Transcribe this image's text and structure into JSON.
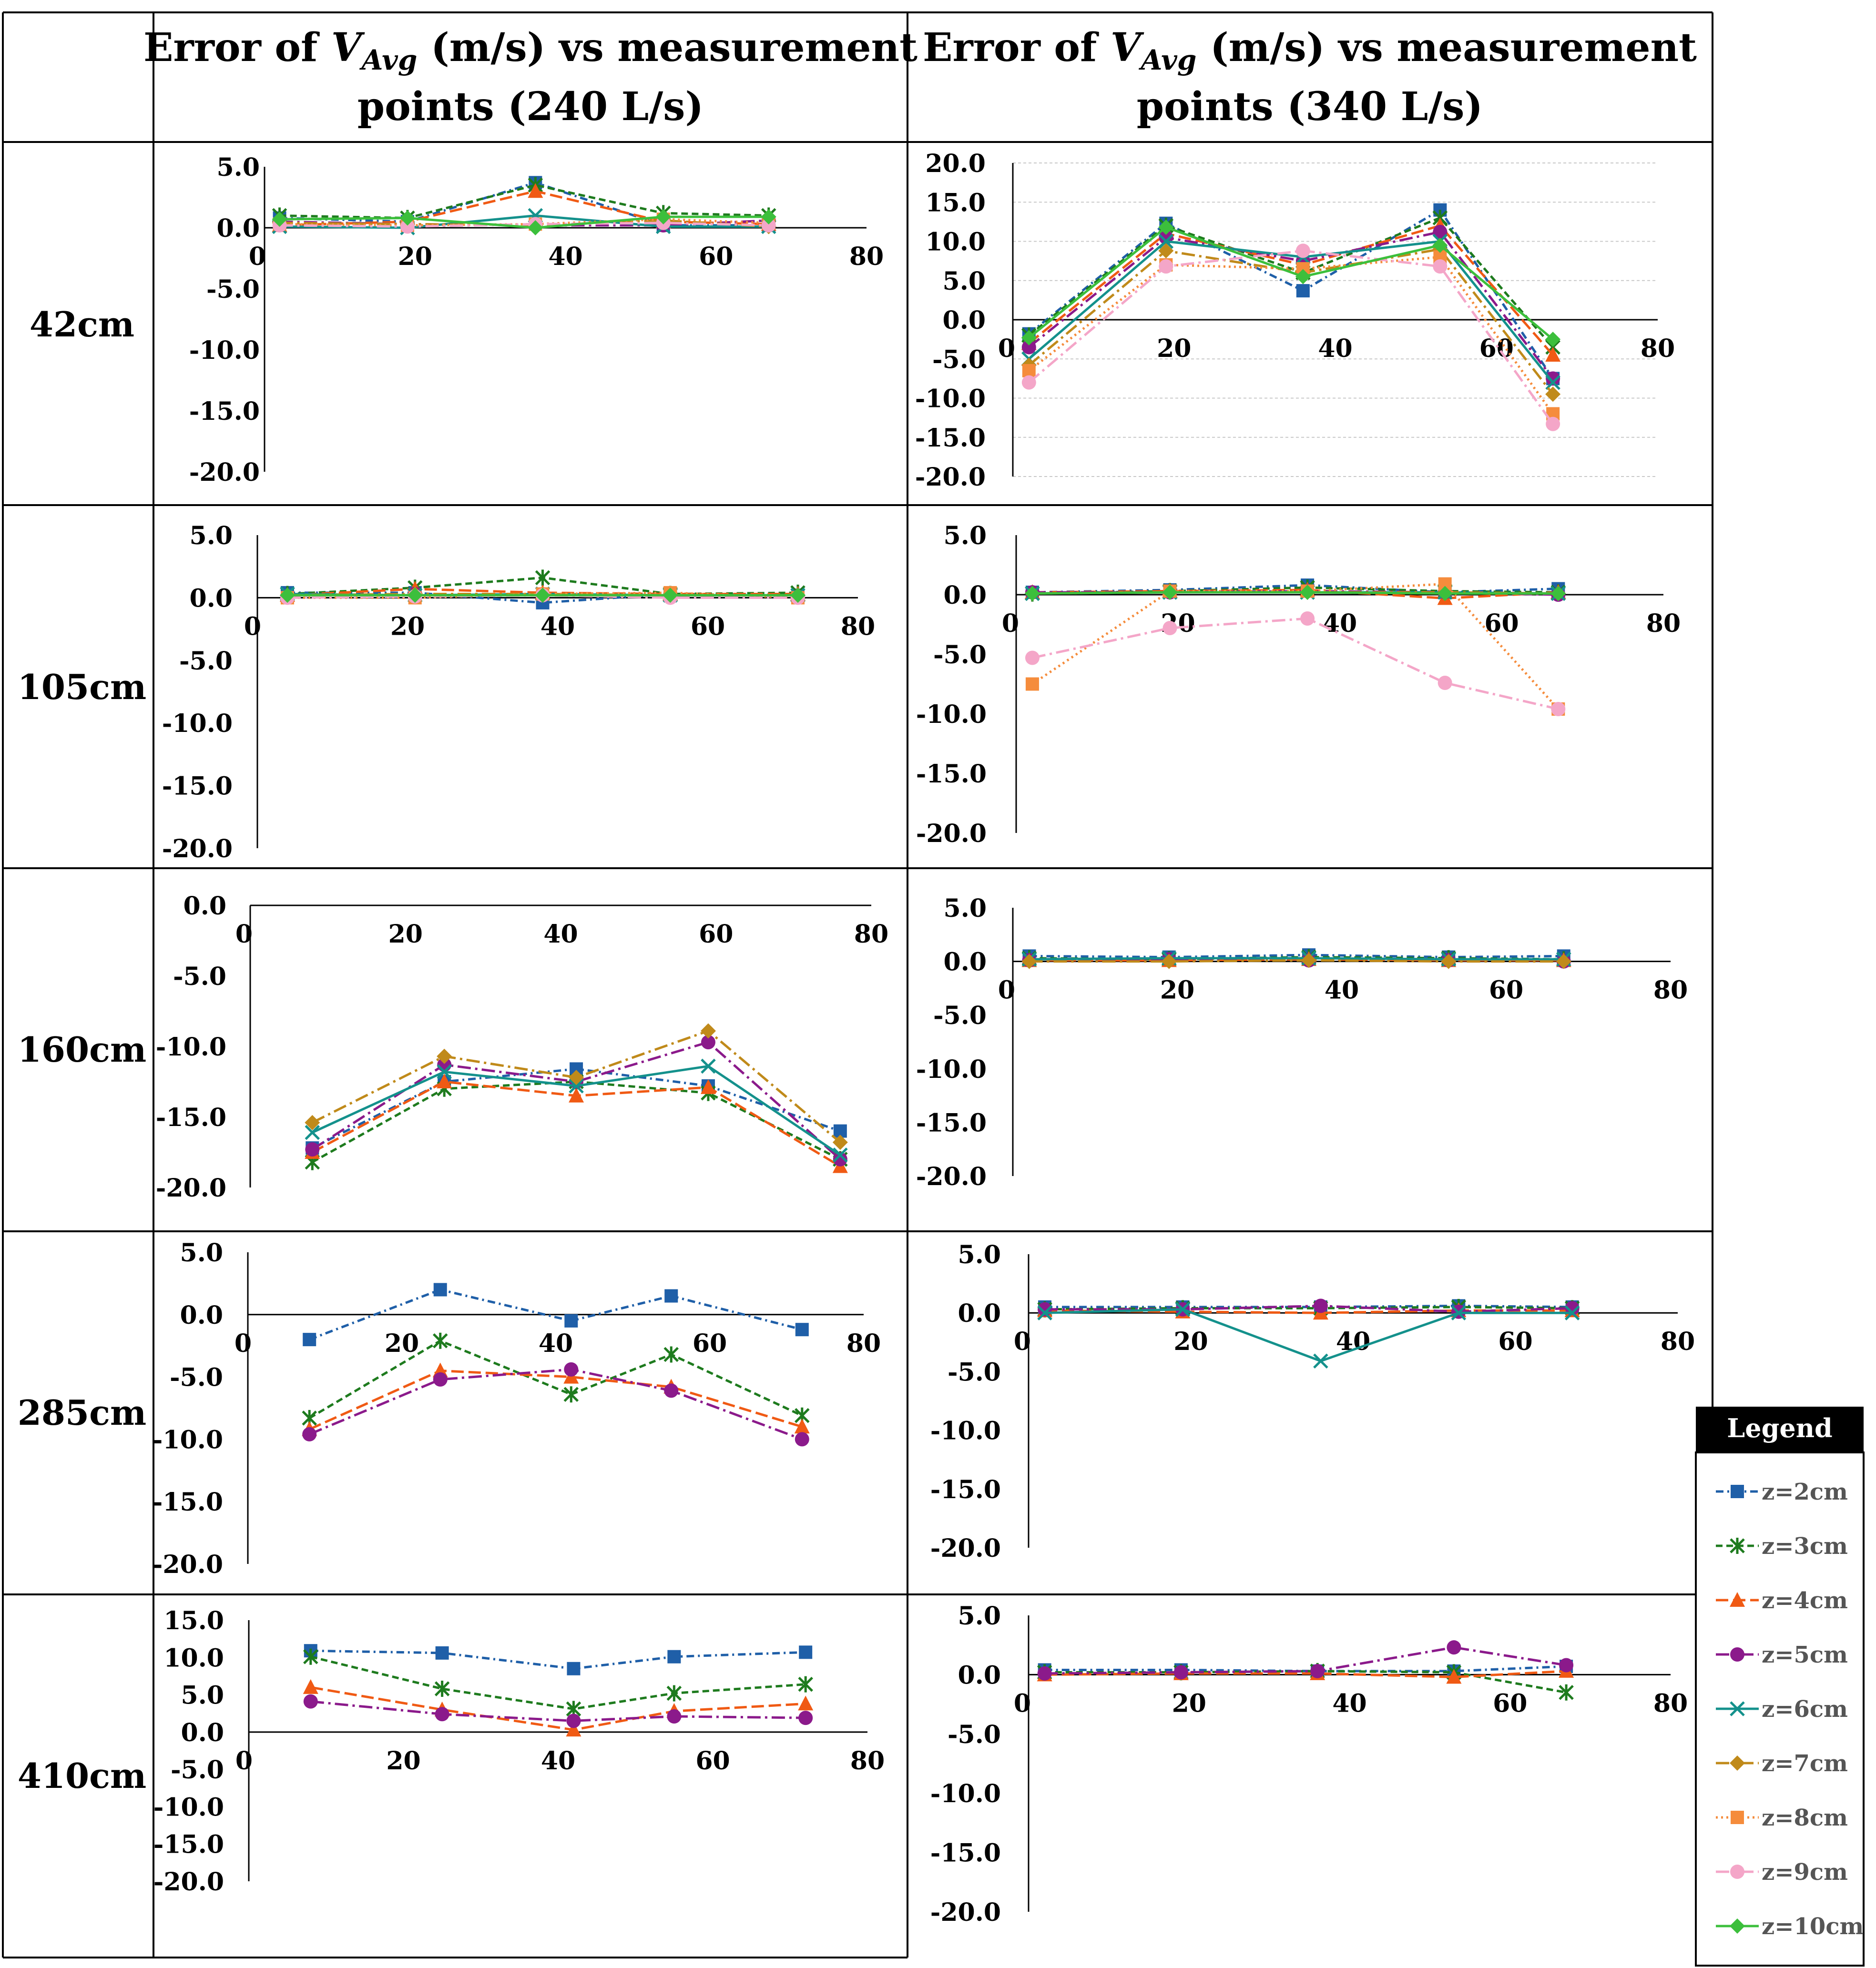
{
  "header": {
    "col1_title_line1_prefix": "Error of ",
    "col1_title_var": "V",
    "col1_title_sub": "Avg",
    "col1_title_line1_suffix": " (m/s) vs measurement",
    "col1_title_line2": "points (240 L/s)",
    "col2_title_line1_prefix": "Error of ",
    "col2_title_var": "V",
    "col2_title_sub": "Avg",
    "col2_title_line1_suffix": " (m/s) vs measurement",
    "col2_title_line2": "points (340 L/s)"
  },
  "rows": [
    "42cm",
    "105cm",
    "160cm",
    "285cm",
    "410cm"
  ],
  "legend": {
    "title": "Legend",
    "items": [
      {
        "label": "z=2cm",
        "color": "#1f5fa8",
        "marker": "square",
        "dash": "dashdot"
      },
      {
        "label": "z=3cm",
        "color": "#1e7b1e",
        "marker": "star",
        "dash": "dash"
      },
      {
        "label": "z=4cm",
        "color": "#f05a14",
        "marker": "triangle",
        "dash": "longdash"
      },
      {
        "label": "z=5cm",
        "color": "#8b1a8b",
        "marker": "circle",
        "dash": "longdashdot"
      },
      {
        "label": "z=6cm",
        "color": "#14918c",
        "marker": "x",
        "dash": "solid"
      },
      {
        "label": "z=7cm",
        "color": "#c08a1a",
        "marker": "diamond",
        "dash": "longdashdot"
      },
      {
        "label": "z=8cm",
        "color": "#f58c3c",
        "marker": "square",
        "dash": "dot"
      },
      {
        "label": "z=9cm",
        "color": "#f4a6c8",
        "marker": "circle",
        "dash": "longdashdot"
      },
      {
        "label": "z=10cm",
        "color": "#3cbf3c",
        "marker": "diamond",
        "dash": "solid"
      }
    ]
  },
  "chart_data": [
    {
      "id": "c42a",
      "type": "line",
      "row": "42cm",
      "flow": "240 L/s",
      "xlim": [
        0,
        80
      ],
      "ylim": [
        -20,
        5
      ],
      "yticks": [
        5,
        0,
        -5,
        -10,
        -15,
        -20
      ],
      "xticks": [
        0,
        20,
        40,
        60,
        80
      ],
      "grid": false,
      "x": [
        2,
        19,
        36,
        53,
        67
      ],
      "series": [
        {
          "name": "z=2cm",
          "values": [
            0.8,
            0.5,
            3.7,
            0.2,
            0.2
          ]
        },
        {
          "name": "z=3cm",
          "values": [
            1.0,
            0.8,
            3.5,
            1.2,
            1.0
          ]
        },
        {
          "name": "z=4cm",
          "values": [
            0.2,
            0.5,
            3.0,
            0.5,
            0.3
          ]
        },
        {
          "name": "z=5cm",
          "values": [
            0.5,
            0.3,
            0.2,
            0.2,
            0.6
          ]
        },
        {
          "name": "z=6cm",
          "values": [
            0.1,
            0.0,
            1.0,
            0.1,
            0.1
          ]
        },
        {
          "name": "z=7cm",
          "values": [
            0.4,
            0.3,
            0.2,
            0.6,
            0.1
          ]
        },
        {
          "name": "z=8cm",
          "values": [
            0.3,
            0.2,
            0.3,
            0.7,
            0.4
          ]
        },
        {
          "name": "z=9cm",
          "values": [
            0.2,
            0.1,
            0.3,
            0.4,
            0.2
          ]
        },
        {
          "name": "z=10cm",
          "values": [
            0.7,
            0.8,
            0.0,
            0.9,
            0.9
          ]
        }
      ]
    },
    {
      "id": "c42b",
      "type": "line",
      "row": "42cm",
      "flow": "340 L/s",
      "xlim": [
        0,
        80
      ],
      "ylim": [
        -20,
        20
      ],
      "yticks": [
        20,
        15,
        10,
        5,
        0,
        -5,
        -10,
        -15,
        -20
      ],
      "xticks": [
        0,
        20,
        40,
        60,
        80
      ],
      "grid": true,
      "x": [
        2,
        19,
        36,
        53,
        67
      ],
      "series": [
        {
          "name": "z=2cm",
          "values": [
            -1.8,
            12.3,
            3.7,
            14.0,
            -7.5
          ]
        },
        {
          "name": "z=3cm",
          "values": [
            -2.0,
            12.0,
            6.0,
            13.0,
            -3.5
          ]
        },
        {
          "name": "z=4cm",
          "values": [
            -3.0,
            11.0,
            7.0,
            12.0,
            -4.5
          ]
        },
        {
          "name": "z=5cm",
          "values": [
            -3.5,
            10.5,
            7.5,
            11.2,
            -7.5
          ]
        },
        {
          "name": "z=6cm",
          "values": [
            -5.0,
            10.0,
            8.0,
            10.0,
            -8.0
          ]
        },
        {
          "name": "z=7cm",
          "values": [
            -5.8,
            8.8,
            6.0,
            9.0,
            -9.5
          ]
        },
        {
          "name": "z=8cm",
          "values": [
            -6.5,
            7.0,
            6.5,
            8.0,
            -12.0
          ]
        },
        {
          "name": "z=9cm",
          "values": [
            -8.0,
            6.8,
            8.8,
            6.8,
            -13.3
          ]
        },
        {
          "name": "z=10cm",
          "values": [
            -2.3,
            11.8,
            5.5,
            9.5,
            -2.5
          ]
        }
      ]
    },
    {
      "id": "c105a",
      "type": "line",
      "row": "105cm",
      "flow": "240 L/s",
      "xlim": [
        0,
        80
      ],
      "ylim": [
        -20,
        5
      ],
      "yticks": [
        5,
        0,
        -5,
        -10,
        -15,
        -20
      ],
      "xticks": [
        0,
        20,
        40,
        60,
        80
      ],
      "grid": false,
      "x": [
        4,
        21,
        38,
        55,
        72
      ],
      "series": [
        {
          "name": "z=2cm",
          "values": [
            0.4,
            0.4,
            -0.4,
            0.3,
            0.2
          ]
        },
        {
          "name": "z=3cm",
          "values": [
            0.3,
            0.8,
            1.6,
            0.3,
            0.4
          ]
        },
        {
          "name": "z=4cm",
          "values": [
            0.2,
            0.7,
            0.4,
            0.3,
            0.3
          ]
        },
        {
          "name": "z=5cm",
          "values": [
            0.1,
            0.3,
            0.2,
            0.1,
            0.1
          ]
        },
        {
          "name": "z=6cm",
          "values": [
            0.3,
            0.2,
            0.3,
            0.2,
            0.2
          ]
        },
        {
          "name": "z=7cm",
          "values": [
            0.2,
            0.3,
            0.3,
            0.2,
            0.2
          ]
        },
        {
          "name": "z=8cm",
          "values": [
            0.0,
            0.0,
            0.3,
            0.4,
            0.0
          ]
        },
        {
          "name": "z=9cm",
          "values": [
            0.0,
            0.1,
            0.2,
            0.0,
            0.0
          ]
        },
        {
          "name": "z=10cm",
          "values": [
            0.2,
            0.2,
            0.2,
            0.2,
            0.2
          ]
        }
      ]
    },
    {
      "id": "c105b",
      "type": "line",
      "row": "105cm",
      "flow": "340 L/s",
      "xlim": [
        0,
        80
      ],
      "ylim": [
        -20,
        5
      ],
      "yticks": [
        5,
        0,
        -5,
        -10,
        -15,
        -20
      ],
      "xticks": [
        0,
        20,
        40,
        60,
        80
      ],
      "grid": false,
      "x": [
        2,
        19,
        36,
        53,
        67
      ],
      "series": [
        {
          "name": "z=2cm",
          "values": [
            0.2,
            0.4,
            0.8,
            0.2,
            0.5
          ]
        },
        {
          "name": "z=3cm",
          "values": [
            0.1,
            0.3,
            0.6,
            0.3,
            0.2
          ]
        },
        {
          "name": "z=4cm",
          "values": [
            0.2,
            0.3,
            0.4,
            -0.3,
            0.2
          ]
        },
        {
          "name": "z=5cm",
          "values": [
            0.2,
            0.2,
            0.3,
            0.2,
            0.0
          ]
        },
        {
          "name": "z=6cm",
          "values": [
            0.1,
            0.2,
            0.2,
            0.2,
            0.1
          ]
        },
        {
          "name": "z=7cm",
          "values": [
            0.1,
            0.2,
            0.2,
            0.2,
            0.1
          ]
        },
        {
          "name": "z=8cm",
          "values": [
            -7.5,
            0.3,
            0.3,
            0.9,
            -9.6
          ]
        },
        {
          "name": "z=9cm",
          "values": [
            -5.3,
            -2.8,
            -2.0,
            -7.4,
            -9.6
          ]
        },
        {
          "name": "z=10cm",
          "values": [
            0.1,
            0.2,
            0.2,
            0.1,
            0.1
          ]
        }
      ]
    },
    {
      "id": "c160a",
      "type": "line",
      "row": "160cm",
      "flow": "240 L/s",
      "xlim": [
        0,
        80
      ],
      "ylim": [
        -20,
        0
      ],
      "yticks": [
        0,
        -5,
        -10,
        -15,
        -20
      ],
      "xticks": [
        0,
        20,
        40,
        60,
        80
      ],
      "grid": false,
      "x": [
        8,
        25,
        42,
        59,
        76
      ],
      "series": [
        {
          "name": "z=2cm",
          "values": [
            -17.2,
            -12.5,
            -11.6,
            -12.8,
            -16.0
          ]
        },
        {
          "name": "z=3cm",
          "values": [
            -18.2,
            -13.0,
            -12.5,
            -13.3,
            -18.0
          ]
        },
        {
          "name": "z=4cm",
          "values": [
            -17.5,
            -12.5,
            -13.5,
            -12.9,
            -18.5
          ]
        },
        {
          "name": "z=5cm",
          "values": [
            -17.3,
            -11.3,
            -12.5,
            -9.7,
            -18.0
          ]
        },
        {
          "name": "z=6cm",
          "values": [
            -16.1,
            -11.8,
            -12.8,
            -11.4,
            -17.7
          ]
        },
        {
          "name": "z=7cm",
          "values": [
            -15.4,
            -10.7,
            -12.2,
            -8.9,
            -16.8
          ]
        }
      ]
    },
    {
      "id": "c160b",
      "type": "line",
      "row": "160cm",
      "flow": "340 L/s",
      "xlim": [
        0,
        80
      ],
      "ylim": [
        -20,
        5
      ],
      "yticks": [
        5,
        0,
        -5,
        -10,
        -15,
        -20
      ],
      "xticks": [
        0,
        20,
        40,
        60,
        80
      ],
      "grid": false,
      "x": [
        2,
        19,
        36,
        53,
        67
      ],
      "series": [
        {
          "name": "z=2cm",
          "values": [
            0.5,
            0.4,
            0.6,
            0.4,
            0.5
          ]
        },
        {
          "name": "z=3cm",
          "values": [
            0.3,
            0.2,
            0.4,
            0.3,
            0.2
          ]
        },
        {
          "name": "z=4cm",
          "values": [
            0.1,
            0.1,
            0.2,
            0.1,
            0.1
          ]
        },
        {
          "name": "z=5cm",
          "values": [
            0.1,
            0.2,
            0.1,
            0.1,
            0.0
          ]
        },
        {
          "name": "z=6cm",
          "values": [
            0.2,
            0.3,
            0.3,
            0.2,
            0.2
          ]
        },
        {
          "name": "z=7cm",
          "values": [
            0.0,
            0.0,
            0.1,
            0.0,
            0.0
          ]
        }
      ]
    },
    {
      "id": "c285a",
      "type": "line",
      "row": "285cm",
      "flow": "240 L/s",
      "xlim": [
        0,
        80
      ],
      "ylim": [
        -20,
        5
      ],
      "yticks": [
        5,
        0,
        -5,
        -10,
        -15,
        -20
      ],
      "xticks": [
        0,
        20,
        40,
        60,
        80
      ],
      "grid": false,
      "x": [
        8,
        25,
        42,
        55,
        72
      ],
      "series": [
        {
          "name": "z=2cm",
          "values": [
            -2.0,
            2.0,
            -0.5,
            1.5,
            -1.2
          ]
        },
        {
          "name": "z=3cm",
          "values": [
            -8.3,
            -2.1,
            -6.4,
            -3.2,
            -8.1
          ]
        },
        {
          "name": "z=4cm",
          "values": [
            -9.2,
            -4.5,
            -5.0,
            -5.8,
            -9.0
          ]
        },
        {
          "name": "z=5cm",
          "values": [
            -9.6,
            -5.2,
            -4.4,
            -6.1,
            -10.0
          ]
        }
      ]
    },
    {
      "id": "c285b",
      "type": "line",
      "row": "285cm",
      "flow": "340 L/s",
      "xlim": [
        0,
        80
      ],
      "ylim": [
        -20,
        5
      ],
      "yticks": [
        5,
        0,
        -5,
        -10,
        -15,
        -20
      ],
      "xticks": [
        0,
        20,
        40,
        60,
        80
      ],
      "grid": false,
      "x": [
        2,
        19,
        36,
        53,
        67
      ],
      "series": [
        {
          "name": "z=2cm",
          "values": [
            0.5,
            0.5,
            0.5,
            0.6,
            0.5
          ]
        },
        {
          "name": "z=3cm",
          "values": [
            0.3,
            0.4,
            0.4,
            0.5,
            0.4
          ]
        },
        {
          "name": "z=4cm",
          "values": [
            0.2,
            0.1,
            0.0,
            0.2,
            0.2
          ]
        },
        {
          "name": "z=5cm",
          "values": [
            0.3,
            0.3,
            0.6,
            0.1,
            0.4
          ]
        },
        {
          "name": "z=6cm",
          "values": [
            0.0,
            0.3,
            -4.1,
            0.0,
            0.0
          ]
        }
      ]
    },
    {
      "id": "c410a",
      "type": "line",
      "row": "410cm",
      "flow": "240 L/s",
      "xlim": [
        0,
        80
      ],
      "ylim": [
        -20,
        15
      ],
      "yticks": [
        15,
        10,
        5,
        0,
        -5,
        -10,
        -15,
        -20
      ],
      "xticks": [
        0,
        20,
        40,
        60,
        80
      ],
      "grid": false,
      "x": [
        8,
        25,
        42,
        55,
        72
      ],
      "series": [
        {
          "name": "z=2cm",
          "values": [
            10.9,
            10.6,
            8.5,
            10.1,
            10.7
          ]
        },
        {
          "name": "z=3cm",
          "values": [
            10.1,
            5.8,
            3.1,
            5.2,
            6.4
          ]
        },
        {
          "name": "z=4cm",
          "values": [
            6.0,
            3.0,
            0.3,
            2.8,
            3.8
          ]
        },
        {
          "name": "z=5cm",
          "values": [
            4.1,
            2.4,
            1.5,
            2.1,
            1.9
          ]
        }
      ]
    },
    {
      "id": "c410b",
      "type": "line",
      "row": "410cm",
      "flow": "340 L/s",
      "xlim": [
        0,
        80
      ],
      "ylim": [
        -20,
        5
      ],
      "yticks": [
        5,
        0,
        -5,
        -10,
        -15,
        -20
      ],
      "xticks": [
        0,
        20,
        40,
        60,
        80
      ],
      "grid": false,
      "x": [
        2,
        19,
        36,
        53,
        67
      ],
      "series": [
        {
          "name": "z=2cm",
          "values": [
            0.4,
            0.4,
            0.3,
            0.3,
            0.7
          ]
        },
        {
          "name": "z=3cm",
          "values": [
            0.2,
            0.2,
            0.3,
            0.2,
            -1.5
          ]
        },
        {
          "name": "z=4cm",
          "values": [
            0.0,
            0.1,
            0.1,
            -0.2,
            0.3
          ]
        },
        {
          "name": "z=5cm",
          "values": [
            0.1,
            0.2,
            0.3,
            2.3,
            0.8
          ]
        }
      ]
    }
  ]
}
